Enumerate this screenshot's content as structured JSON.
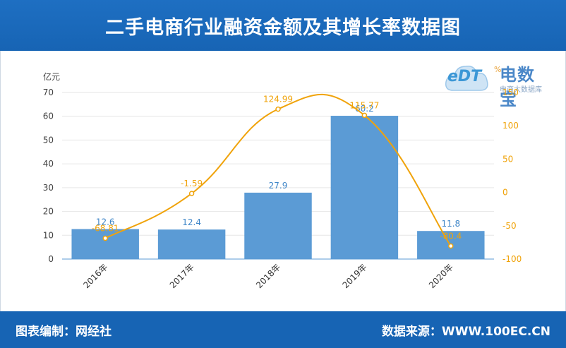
{
  "header": {
    "title": "二手电商行业融资金额及其增长率数据图"
  },
  "footer": {
    "left": "图表编制：网经社",
    "right": "数据来源：WWW.100EC.CN"
  },
  "logo": {
    "title": "电数宝",
    "subtitle": "电商大数据库",
    "mark": "eDT",
    "pct": "%"
  },
  "chart_data": {
    "type": "bar",
    "title": "二手电商行业融资金额及其增长率数据图",
    "categories": [
      "2016年",
      "2017年",
      "2018年",
      "2019年",
      "2020年"
    ],
    "ylabel": "亿元",
    "ylim": [
      0,
      70
    ],
    "yticks": [
      0,
      10,
      20,
      30,
      40,
      50,
      60,
      70
    ],
    "y2lim": [
      -100,
      150
    ],
    "y2ticks": [
      -100,
      -50,
      0,
      50,
      100,
      150
    ],
    "grid": true,
    "colors": {
      "bar": "#5b9bd5",
      "line": "#f0a30a",
      "axisRight": "#f0a30a",
      "barLabel": "#3f86c8"
    },
    "series": [
      {
        "type": "bar",
        "values": [
          12.6,
          12.4,
          27.9,
          60.2,
          11.8
        ],
        "labels": [
          "12.6",
          "12.4",
          "27.9",
          "60.2",
          "11.8"
        ]
      },
      {
        "type": "line",
        "axis": "right",
        "values": [
          -68.81,
          -1.59,
          124.99,
          115.77,
          -80.4
        ],
        "labels": [
          "-68.81",
          "-1.59",
          "124.99",
          "115.77",
          "-80.4"
        ]
      }
    ]
  }
}
